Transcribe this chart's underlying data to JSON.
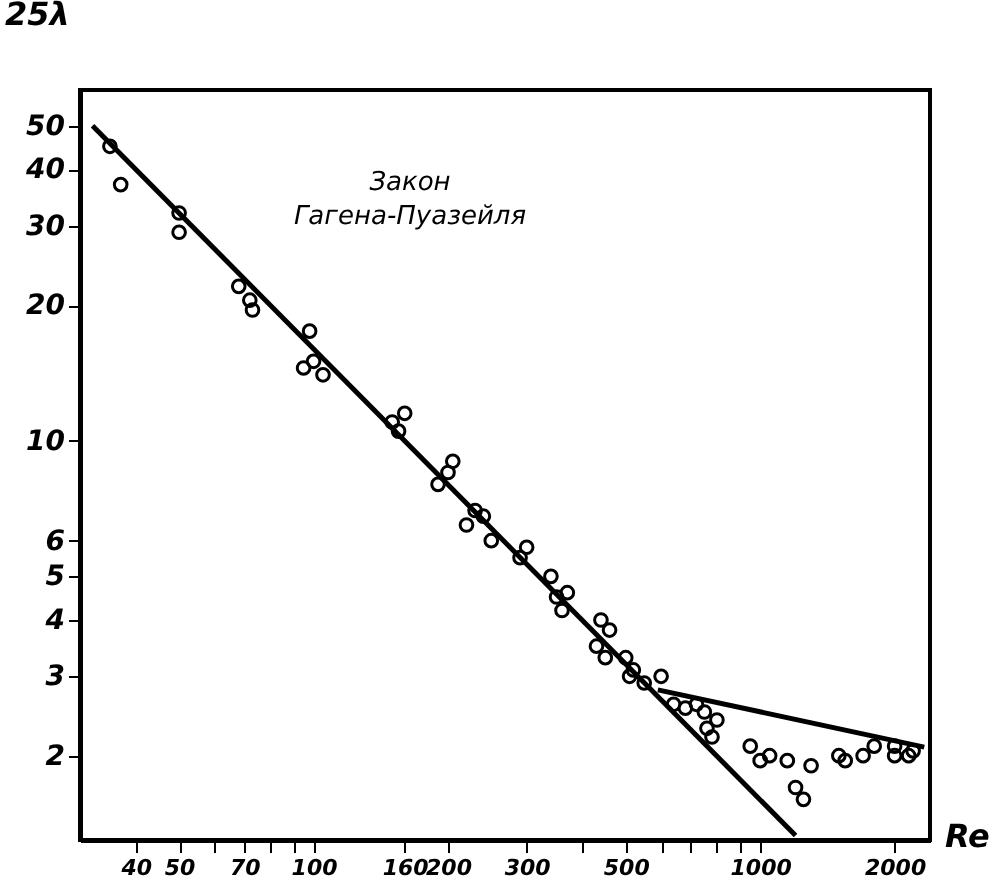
{
  "chart_data": {
    "type": "scatter",
    "xlabel": "Re",
    "ylabel": "25λ",
    "log": "xy",
    "grid": false,
    "xlim": [
      30,
      2400
    ],
    "ylim": [
      1.3,
      60
    ],
    "xticks": [
      40,
      50,
      {
        "value": 60,
        "label": null
      },
      70,
      {
        "value": 80,
        "label": null
      },
      {
        "value": 90,
        "label": null
      },
      100,
      160,
      200,
      300,
      {
        "value": 400,
        "label": null
      },
      500,
      {
        "value": 600,
        "label": null
      },
      {
        "value": 700,
        "label": null
      },
      {
        "value": 800,
        "label": null
      },
      {
        "value": 900,
        "label": null
      },
      1000,
      2000
    ],
    "yticks": [
      2,
      3,
      4,
      5,
      6,
      10,
      20,
      30,
      40,
      50
    ],
    "series": [
      {
        "marker": "circle",
        "color": "#000000",
        "x": [
          35,
          37,
          50,
          50,
          68,
          72,
          73,
          95,
          98,
          100,
          105,
          150,
          155,
          160,
          190,
          200,
          205,
          220,
          230,
          240,
          250,
          290,
          300,
          340,
          350,
          360,
          370,
          430,
          440,
          450,
          460,
          500,
          510,
          520,
          550,
          600,
          640,
          680,
          720,
          750,
          760,
          780,
          800,
          950,
          1000,
          1050,
          1150,
          1200,
          1250,
          1300,
          1500,
          1550,
          1700,
          1800,
          2000,
          2000,
          2150,
          2200
        ],
        "values": [
          45,
          37,
          32,
          29,
          22,
          20.5,
          19.5,
          14.5,
          17.5,
          15,
          14,
          11,
          10.5,
          11.5,
          8,
          8.5,
          9,
          6.5,
          7,
          6.8,
          6,
          5.5,
          5.8,
          5,
          4.5,
          4.2,
          4.6,
          3.5,
          4,
          3.3,
          3.8,
          3.3,
          3,
          3.1,
          2.9,
          3,
          2.6,
          2.55,
          2.6,
          2.5,
          2.3,
          2.2,
          2.4,
          2.1,
          1.95,
          2,
          1.95,
          1.7,
          1.6,
          1.9,
          2,
          1.95,
          2,
          2.1,
          2.1,
          2,
          2,
          2.05
        ]
      },
      {
        "type": "line",
        "color": "#000000",
        "x": [
          32,
          1200
        ],
        "values": [
          50,
          1.33
        ]
      },
      {
        "type": "line",
        "color": "#000000",
        "x": [
          590,
          2330
        ],
        "values": [
          2.8,
          2.09
        ]
      }
    ],
    "annotations": [
      "Закон\nГагена-Пуазейля"
    ]
  }
}
